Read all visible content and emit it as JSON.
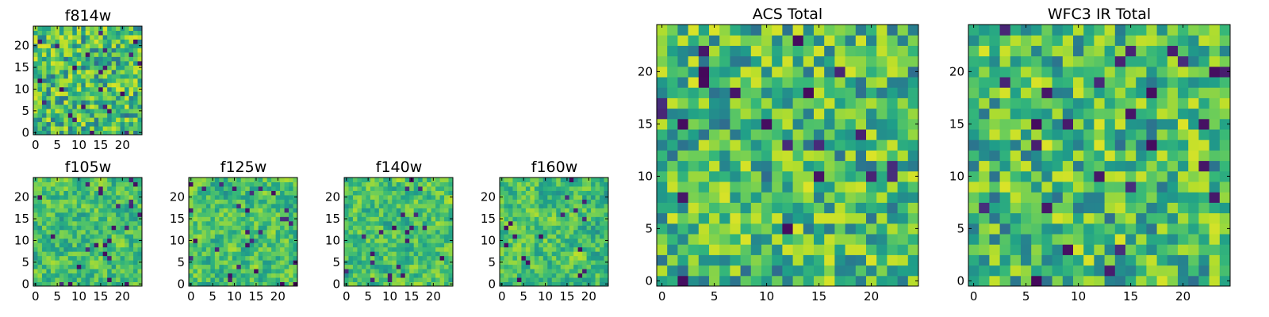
{
  "chart_data": {
    "type": "heatmap",
    "colormap": "viridis",
    "grid": false,
    "panels": [
      {
        "id": "f814w",
        "title": "f814w",
        "rows": 25,
        "cols": 25,
        "xlim": [
          -0.5,
          24.5
        ],
        "ylim": [
          -0.5,
          24.5
        ],
        "xticks": [
          0,
          5,
          10,
          15,
          20
        ],
        "yticks": [
          0,
          5,
          10,
          15,
          20
        ],
        "texture": "noisy"
      },
      {
        "id": "f105w",
        "title": "f105w",
        "rows": 25,
        "cols": 25,
        "xlim": [
          -0.5,
          24.5
        ],
        "ylim": [
          -0.5,
          24.5
        ],
        "xticks": [
          0,
          5,
          10,
          15,
          20
        ],
        "yticks": [
          0,
          5,
          10,
          15,
          20
        ],
        "texture": "smooth"
      },
      {
        "id": "f125w",
        "title": "f125w",
        "rows": 25,
        "cols": 25,
        "xlim": [
          -0.5,
          24.5
        ],
        "ylim": [
          -0.5,
          24.5
        ],
        "xticks": [
          0,
          5,
          10,
          15,
          20
        ],
        "yticks": [
          0,
          5,
          10,
          15,
          20
        ],
        "texture": "smooth"
      },
      {
        "id": "f140w",
        "title": "f140w",
        "rows": 25,
        "cols": 25,
        "xlim": [
          -0.5,
          24.5
        ],
        "ylim": [
          -0.5,
          24.5
        ],
        "xticks": [
          0,
          5,
          10,
          15,
          20
        ],
        "yticks": [
          0,
          5,
          10,
          15,
          20
        ],
        "texture": "smooth"
      },
      {
        "id": "f160w",
        "title": "f160w",
        "rows": 25,
        "cols": 25,
        "xlim": [
          -0.5,
          24.5
        ],
        "ylim": [
          -0.5,
          24.5
        ],
        "xticks": [
          0,
          5,
          10,
          15,
          20
        ],
        "yticks": [
          0,
          5,
          10,
          15,
          20
        ],
        "texture": "smooth"
      },
      {
        "id": "acs_total",
        "title": "ACS Total",
        "rows": 25,
        "cols": 25,
        "xlim": [
          -0.5,
          24.5
        ],
        "ylim": [
          -0.5,
          24.5
        ],
        "xticks": [
          0,
          5,
          10,
          15,
          20
        ],
        "yticks": [
          0,
          5,
          10,
          15,
          20
        ],
        "texture": "noisy"
      },
      {
        "id": "wfc3_ir_total",
        "title": "WFC3 IR Total",
        "rows": 25,
        "cols": 25,
        "xlim": [
          -0.5,
          24.5
        ],
        "ylim": [
          -0.5,
          24.5
        ],
        "xticks": [
          0,
          5,
          10,
          15,
          20
        ],
        "yticks": [
          0,
          5,
          10,
          15,
          20
        ],
        "texture": "noisy"
      }
    ]
  }
}
